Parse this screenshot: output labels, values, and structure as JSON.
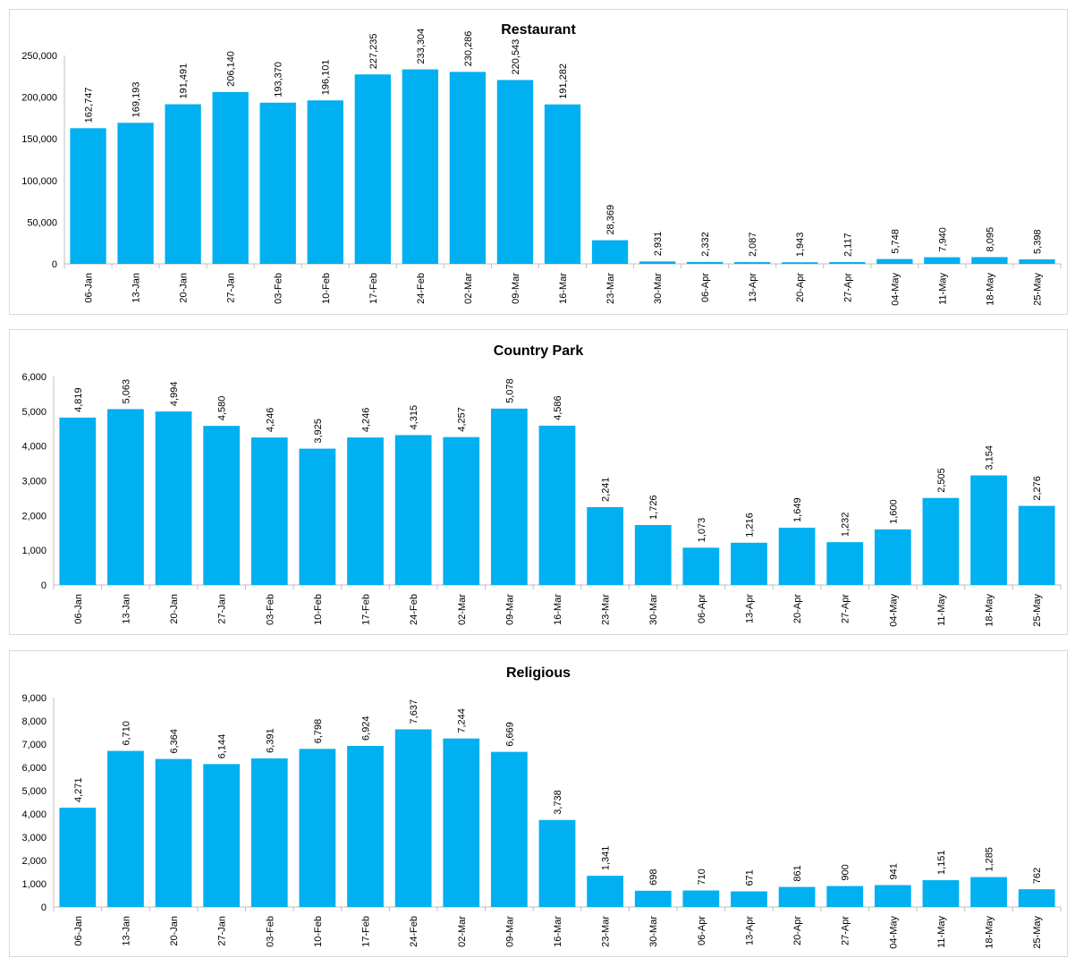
{
  "colors": {
    "bar": "#00b0f0",
    "axis": "#bfbfbf",
    "text": "#000000"
  },
  "chart_data": [
    {
      "type": "bar",
      "title": "Restaurant",
      "categories": [
        "06-Jan",
        "13-Jan",
        "20-Jan",
        "27-Jan",
        "03-Feb",
        "10-Feb",
        "17-Feb",
        "24-Feb",
        "02-Mar",
        "09-Mar",
        "16-Mar",
        "23-Mar",
        "30-Mar",
        "06-Apr",
        "13-Apr",
        "20-Apr",
        "27-Apr",
        "04-May",
        "11-May",
        "18-May",
        "25-May"
      ],
      "values": [
        162747,
        169193,
        191491,
        206140,
        193370,
        196101,
        227235,
        233304,
        230286,
        220543,
        191282,
        28369,
        2931,
        2332,
        2087,
        1943,
        2117,
        5748,
        7940,
        8095,
        5398
      ],
      "labels": [
        "162,747",
        "169,193",
        "191,491",
        "206,140",
        "193,370",
        "196,101",
        "227,235",
        "233,304",
        "230,286",
        "220,543",
        "191,282",
        "28,369",
        "2,931",
        "2,332",
        "2,087",
        "1,943",
        "2,117",
        "5,748",
        "7,940",
        "8,095",
        "5,398"
      ],
      "ylim": [
        0,
        250000
      ],
      "yticks": [
        "0",
        "50,000",
        "100,000",
        "150,000",
        "200,000",
        "250,000"
      ],
      "grid": false,
      "legend": "none"
    },
    {
      "type": "bar",
      "title": "Country Park",
      "categories": [
        "06-Jan",
        "13-Jan",
        "20-Jan",
        "27-Jan",
        "03-Feb",
        "10-Feb",
        "17-Feb",
        "24-Feb",
        "02-Mar",
        "09-Mar",
        "16-Mar",
        "23-Mar",
        "30-Mar",
        "06-Apr",
        "13-Apr",
        "20-Apr",
        "27-Apr",
        "04-May",
        "11-May",
        "18-May",
        "25-May"
      ],
      "values": [
        4819,
        5063,
        4994,
        4580,
        4246,
        3925,
        4246,
        4315,
        4257,
        5078,
        4586,
        2241,
        1726,
        1073,
        1216,
        1649,
        1232,
        1600,
        2505,
        3154,
        2276
      ],
      "labels": [
        "4,819",
        "5,063",
        "4,994",
        "4,580",
        "4,246",
        "3,925",
        "4,246",
        "4,315",
        "4,257",
        "5,078",
        "4,586",
        "2,241",
        "1,726",
        "1,073",
        "1,216",
        "1,649",
        "1,232",
        "1,600",
        "2,505",
        "3,154",
        "2,276"
      ],
      "ylim": [
        0,
        6000
      ],
      "yticks": [
        "0",
        "1,000",
        "2,000",
        "3,000",
        "4,000",
        "5,000",
        "6,000"
      ],
      "grid": false,
      "legend": "none"
    },
    {
      "type": "bar",
      "title": "Religious",
      "categories": [
        "06-Jan",
        "13-Jan",
        "20-Jan",
        "27-Jan",
        "03-Feb",
        "10-Feb",
        "17-Feb",
        "24-Feb",
        "02-Mar",
        "09-Mar",
        "16-Mar",
        "23-Mar",
        "30-Mar",
        "06-Apr",
        "13-Apr",
        "20-Apr",
        "27-Apr",
        "04-May",
        "11-May",
        "18-May",
        "25-May"
      ],
      "values": [
        4271,
        6710,
        6364,
        6144,
        6391,
        6798,
        6924,
        7637,
        7244,
        6669,
        3738,
        1341,
        698,
        710,
        671,
        861,
        900,
        941,
        1151,
        1285,
        762
      ],
      "labels": [
        "4,271",
        "6,710",
        "6,364",
        "6,144",
        "6,391",
        "6,798",
        "6,924",
        "7,637",
        "7,244",
        "6,669",
        "3,738",
        "1,341",
        "698",
        "710",
        "671",
        "861",
        "900",
        "941",
        "1,151",
        "1,285",
        "762"
      ],
      "ylim": [
        0,
        9000
      ],
      "yticks": [
        "0",
        "1,000",
        "2,000",
        "3,000",
        "4,000",
        "5,000",
        "6,000",
        "7,000",
        "8,000",
        "9,000"
      ],
      "grid": false,
      "legend": "none"
    }
  ]
}
